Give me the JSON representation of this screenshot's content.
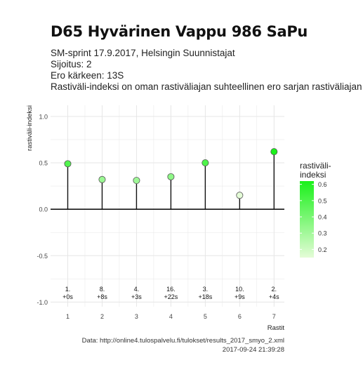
{
  "title": "D65 Hyvärinen Vappu 986 SaPu",
  "subtitle_lines": [
    "SM-sprint 17.9.2017, Helsingin Suunnistajat",
    "Sijoitus: 2",
    "Ero kärkeen: 13S",
    "Rastiväli-indeksi on oman rastiväliajan suhteellinen ero sarjan rastiväliajan kes"
  ],
  "caption_lines": [
    "Data: http://online4.tulospalvelu.fi/tulokset/results_2017_smyo_2.xml",
    "2017-09-24 21:39:28"
  ],
  "colors": {
    "low": "#e4fcd7",
    "high": "#1af11a",
    "stem": "#111111",
    "grid": "#e6e6e6",
    "zero_line": "#000000"
  },
  "chart_data": {
    "type": "lollipop",
    "xlabel": "Rastit",
    "ylabel": "rastiväli-indeksi",
    "x": [
      1,
      2,
      3,
      4,
      5,
      6,
      7
    ],
    "values": [
      0.49,
      0.32,
      0.31,
      0.35,
      0.5,
      0.15,
      0.62
    ],
    "point_labels": [
      [
        "1.",
        "+0s"
      ],
      [
        "8.",
        "+8s"
      ],
      [
        "4.",
        "+3s"
      ],
      [
        "16.",
        "+22s"
      ],
      [
        "3.",
        "+18s"
      ],
      [
        "10.",
        "+9s"
      ],
      [
        "2.",
        "+4s"
      ]
    ],
    "xlim": [
      0.5,
      7.3
    ],
    "ylim": [
      -1.05,
      1.12
    ],
    "yticks": [
      -1.0,
      -0.5,
      0.0,
      0.5,
      1.0
    ],
    "yticklabels": [
      "-1.0",
      "-0.5",
      "0.0",
      "0.5",
      "1.0"
    ],
    "xticks": [
      1,
      2,
      3,
      4,
      5,
      6,
      7
    ],
    "xticklabels": [
      "1",
      "2",
      "3",
      "4",
      "5",
      "6",
      "7"
    ],
    "grid": true,
    "legend": {
      "title_lines": [
        "rastiväli-",
        "indeksi"
      ],
      "ticks": [
        "0.6",
        "0.5",
        "0.4",
        "0.3",
        "0.2"
      ],
      "tick_values": [
        0.6,
        0.5,
        0.4,
        0.3,
        0.2
      ],
      "range": [
        0.15,
        0.62
      ],
      "placement": "right"
    }
  }
}
